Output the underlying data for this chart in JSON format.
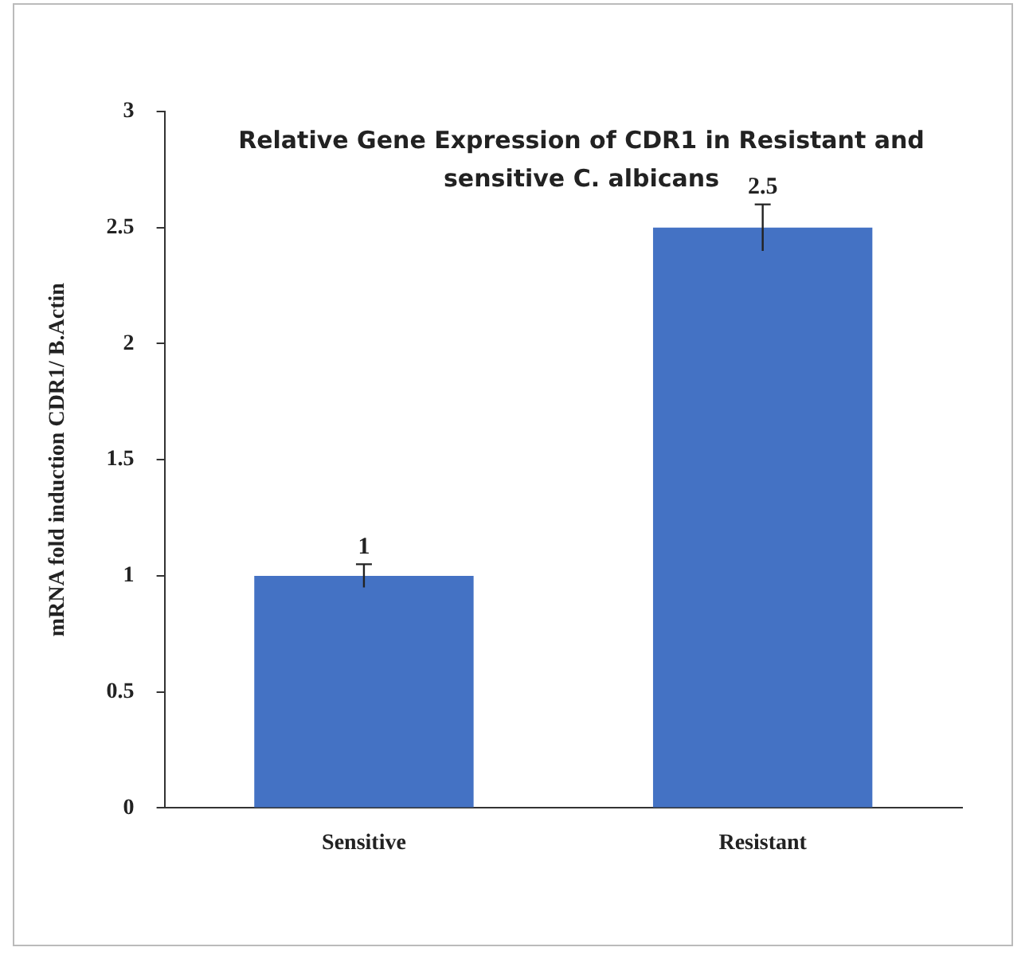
{
  "chart_data": {
    "type": "bar",
    "title": "Relative Gene Expression of CDR1 in Resistant and sensitive C. albicans",
    "ylabel": "mRNA fold induction CDR1/ B.Actin",
    "categories": [
      "Sensitive",
      "Resistant"
    ],
    "values": [
      1,
      2.5
    ],
    "color": "#4472c4",
    "errors": [
      [
        0.95,
        1.05
      ],
      [
        2.4,
        2.6
      ]
    ],
    "value_labels": [
      "1",
      "2.5"
    ],
    "ylim": [
      0,
      3
    ],
    "yticks": [
      0,
      0.5,
      1,
      1.5,
      2,
      2.5,
      3
    ],
    "grid": false,
    "legend": false
  }
}
